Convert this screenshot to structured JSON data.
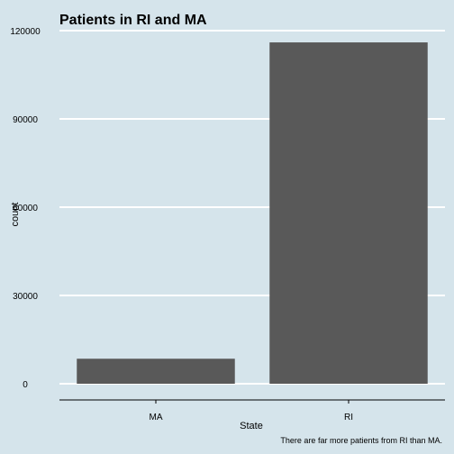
{
  "chart_data": {
    "type": "bar",
    "title": "Patients in RI and MA",
    "xlabel": "State",
    "ylabel": "count",
    "caption": "There are far more patients from RI than MA.",
    "categories": [
      "MA",
      "RI"
    ],
    "values": [
      8500,
      116000
    ],
    "ylim": [
      0,
      120000
    ],
    "yticks": [
      0,
      30000,
      60000,
      90000,
      120000
    ],
    "ytick_labels": [
      "0",
      "30000",
      "60000",
      "90000",
      "120000"
    ],
    "grid": "horizontal major lines",
    "legend": "none",
    "colors": {
      "background": "#d5e4eb",
      "bar": "#595959",
      "grid": "#ffffff",
      "axis": "#000000",
      "text": "#000000"
    }
  }
}
